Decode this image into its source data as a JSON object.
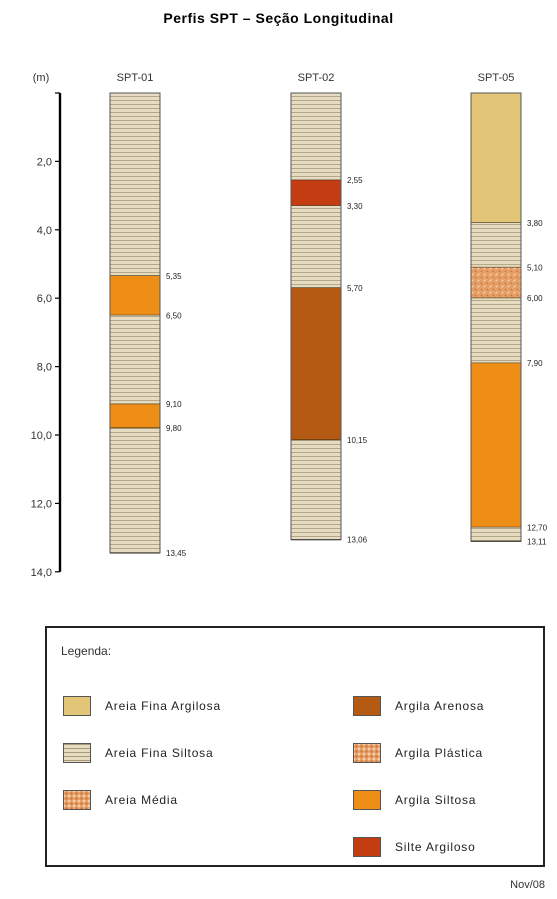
{
  "title": "Perfis SPT – Seção Longitudinal",
  "date": "Nov/08",
  "depth_axis": {
    "unit_label": "(m)",
    "ticks": [
      "2,0",
      "4,0",
      "6,0",
      "8,0",
      "10,0",
      "12,0",
      "14,0"
    ]
  },
  "materials": {
    "areia_fina_argilosa": {
      "label": "Areia Fina Argilosa",
      "color": "#e2c577",
      "pattern": "plain"
    },
    "areia_fina_siltosa": {
      "label": "Areia Fina Siltosa",
      "color": "#e6dcc2",
      "pattern": "hlines"
    },
    "areia_media": {
      "label": "Areia Média",
      "color": "#e8a36c",
      "pattern": "dots"
    },
    "argila_arenosa": {
      "label": "Argila Arenosa",
      "color": "#b45a12",
      "pattern": "plain"
    },
    "argila_plastica": {
      "label": "Argila Plástica",
      "color": "#e8a36c",
      "pattern": "dots"
    },
    "argila_siltosa": {
      "label": "Argila Siltosa",
      "color": "#ee8e16",
      "pattern": "plain"
    },
    "silte_argiloso": {
      "label": "Silte Argiloso",
      "color": "#c43c12",
      "pattern": "plain"
    }
  },
  "profiles": [
    {
      "name": "SPT-01",
      "layers": [
        {
          "top": 0,
          "bottom": 5.35,
          "material": "areia_fina_siltosa"
        },
        {
          "top": 5.35,
          "bottom": 6.5,
          "material": "argila_siltosa"
        },
        {
          "top": 6.5,
          "bottom": 9.1,
          "material": "areia_fina_siltosa"
        },
        {
          "top": 9.1,
          "bottom": 9.8,
          "material": "argila_siltosa"
        },
        {
          "top": 9.8,
          "bottom": 13.45,
          "material": "areia_fina_siltosa"
        }
      ],
      "depth_labels": [
        "5,35",
        "6,50",
        "9,10",
        "9,80",
        "13,45"
      ]
    },
    {
      "name": "SPT-02",
      "layers": [
        {
          "top": 0,
          "bottom": 2.55,
          "material": "areia_fina_siltosa"
        },
        {
          "top": 2.55,
          "bottom": 3.3,
          "material": "silte_argiloso"
        },
        {
          "top": 3.3,
          "bottom": 5.7,
          "material": "areia_fina_siltosa"
        },
        {
          "top": 5.7,
          "bottom": 10.15,
          "material": "argila_arenosa"
        },
        {
          "top": 10.15,
          "bottom": 13.06,
          "material": "areia_fina_siltosa"
        }
      ],
      "depth_labels": [
        "2,55",
        "3,30",
        "5,70",
        "10,15",
        "13,06"
      ]
    },
    {
      "name": "SPT-05",
      "layers": [
        {
          "top": 0,
          "bottom": 3.8,
          "material": "areia_fina_argilosa"
        },
        {
          "top": 3.8,
          "bottom": 5.1,
          "material": "areia_fina_siltosa"
        },
        {
          "top": 5.1,
          "bottom": 6.0,
          "material": "argila_plastica"
        },
        {
          "top": 6.0,
          "bottom": 7.9,
          "material": "areia_fina_siltosa"
        },
        {
          "top": 7.9,
          "bottom": 12.7,
          "material": "argila_siltosa"
        },
        {
          "top": 12.7,
          "bottom": 13.11,
          "material": "areia_fina_siltosa"
        }
      ],
      "depth_labels": [
        "3,80",
        "5,10",
        "6,00",
        "7,90",
        "12,70",
        "13,11"
      ]
    }
  ],
  "legend": {
    "title": "Legenda:",
    "left_items": [
      {
        "material": "areia_fina_argilosa",
        "label": "Areia Fina Argilosa"
      },
      {
        "material": "areia_fina_siltosa",
        "label": "Areia Fina Siltosa"
      },
      {
        "material": "areia_media",
        "label": "Areia Média"
      }
    ],
    "right_items": [
      {
        "material": "argila_arenosa",
        "label": "Argila Arenosa"
      },
      {
        "material": "argila_plastica",
        "label": "Argila Plástica"
      },
      {
        "material": "argila_siltosa",
        "label": "Argila Siltosa"
      },
      {
        "material": "silte_argiloso",
        "label": "Silte Argiloso"
      }
    ]
  }
}
